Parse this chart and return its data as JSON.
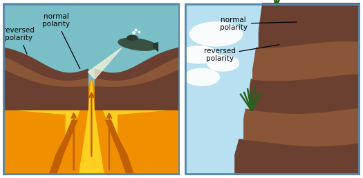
{
  "water_teal_top": "#7abfcc",
  "water_teal_mid": "#5aa0b0",
  "water_teal_bot": "#3a8090",
  "border_color": "#5588aa",
  "rock_dark_brown": "#6b4030",
  "rock_med_brown": "#8b5538",
  "rock_light_brown": "#b07858",
  "magma_bright_yellow": "#ffd020",
  "magma_orange": "#f09000",
  "magma_dark_orange": "#c06000",
  "magma_amber": "#e8a000",
  "sub_color": "#3a5040",
  "sub_dark": "#2a3830",
  "beam_color": "#f0f0d8",
  "bubble_color": "#d0e8f0",
  "sky_blue": "#b8e0f0",
  "cloud_white": "#ffffff",
  "grass_dark": "#2a6020",
  "grass_mid": "#3a7828",
  "cliff_dark": "#6b4030",
  "cliff_mid": "#8b5538",
  "cliff_light": "#7a4830",
  "text_color": "#000000",
  "label_left_reversed": "reversed\npolarity",
  "label_left_normal": "normal\npolarity",
  "label_right_normal": "normal\npolarity",
  "label_right_reversed": "reversed\npolarity",
  "font_size": 7.5
}
